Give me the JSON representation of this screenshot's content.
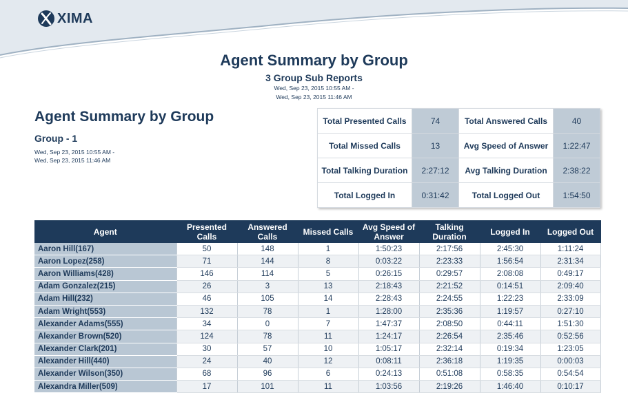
{
  "brand": {
    "logo_text": "XIMA",
    "accent": "#1e3a5a",
    "value_cell_color": "#bfcbd6",
    "header_fill": "#e3e9ef"
  },
  "report": {
    "title": "Agent Summary by Group",
    "subtitle": "3 Group Sub Reports",
    "date_start": "Wed, Sep 23, 2015 10:55 AM -",
    "date_end": "Wed, Sep 23, 2015 11:46 AM"
  },
  "section": {
    "title": "Agent Summary by Group",
    "group_name": "Group - 1",
    "date_start": "Wed, Sep 23, 2015 10:55 AM -",
    "date_end": "Wed, Sep 23, 2015 11:46 AM"
  },
  "summary": [
    [
      {
        "label": "Total Presented Calls",
        "value": "74"
      },
      {
        "label": "Total Answered Calls",
        "value": "40"
      }
    ],
    [
      {
        "label": "Total Missed Calls",
        "value": "13"
      },
      {
        "label": "Avg Speed of Answer",
        "value": "1:22:47"
      }
    ],
    [
      {
        "label": "Total Talking Duration",
        "value": "2:27:12"
      },
      {
        "label": "Avg Talking Duration",
        "value": "2:38:22"
      }
    ],
    [
      {
        "label": "Total Logged In",
        "value": "0:31:42"
      },
      {
        "label": "Total Logged Out",
        "value": "1:54:50"
      }
    ]
  ],
  "table": {
    "columns": [
      {
        "line1": "Agent",
        "line2": ""
      },
      {
        "line1": "Presented",
        "line2": "Calls"
      },
      {
        "line1": "Answered",
        "line2": "Calls"
      },
      {
        "line1": "Missed Calls",
        "line2": ""
      },
      {
        "line1": "Avg Speed of",
        "line2": "Answer"
      },
      {
        "line1": "Talking",
        "line2": "Duration"
      },
      {
        "line1": "Logged In",
        "line2": ""
      },
      {
        "line1": "Logged Out",
        "line2": ""
      }
    ],
    "rows": [
      [
        "Aaron Hill(167)",
        "50",
        "148",
        "1",
        "1:50:23",
        "2:17:56",
        "2:45:30",
        "1:11:24"
      ],
      [
        "Aaron Lopez(258)",
        "71",
        "144",
        "8",
        "0:03:22",
        "2:23:33",
        "1:56:54",
        "2:31:34"
      ],
      [
        "Aaron Williams(428)",
        "146",
        "114",
        "5",
        "0:26:15",
        "0:29:57",
        "2:08:08",
        "0:49:17"
      ],
      [
        "Adam Gonzalez(215)",
        "26",
        "3",
        "13",
        "2:18:43",
        "2:21:52",
        "0:14:51",
        "2:09:40"
      ],
      [
        "Adam Hill(232)",
        "46",
        "105",
        "14",
        "2:28:43",
        "2:24:55",
        "1:22:23",
        "2:33:09"
      ],
      [
        "Adam Wright(553)",
        "132",
        "78",
        "1",
        "1:28:00",
        "2:35:36",
        "1:19:57",
        "0:27:10"
      ],
      [
        "Alexander Adams(555)",
        "34",
        "0",
        "7",
        "1:47:37",
        "2:08:50",
        "0:44:11",
        "1:51:30"
      ],
      [
        "Alexander Brown(520)",
        "124",
        "78",
        "11",
        "1:24:17",
        "2:26:54",
        "2:35:46",
        "0:52:56"
      ],
      [
        "Alexander Clark(201)",
        "30",
        "57",
        "10",
        "1:05:17",
        "2:32:14",
        "0:19:34",
        "1:23:05"
      ],
      [
        "Alexander Hill(440)",
        "24",
        "40",
        "12",
        "0:08:11",
        "2:36:18",
        "1:19:35",
        "0:00:03"
      ],
      [
        "Alexander Wilson(350)",
        "68",
        "96",
        "6",
        "0:24:13",
        "0:51:08",
        "0:58:35",
        "0:54:54"
      ],
      [
        "Alexandra Miller(509)",
        "17",
        "101",
        "11",
        "1:03:56",
        "2:19:26",
        "1:46:40",
        "0:10:17"
      ]
    ]
  }
}
